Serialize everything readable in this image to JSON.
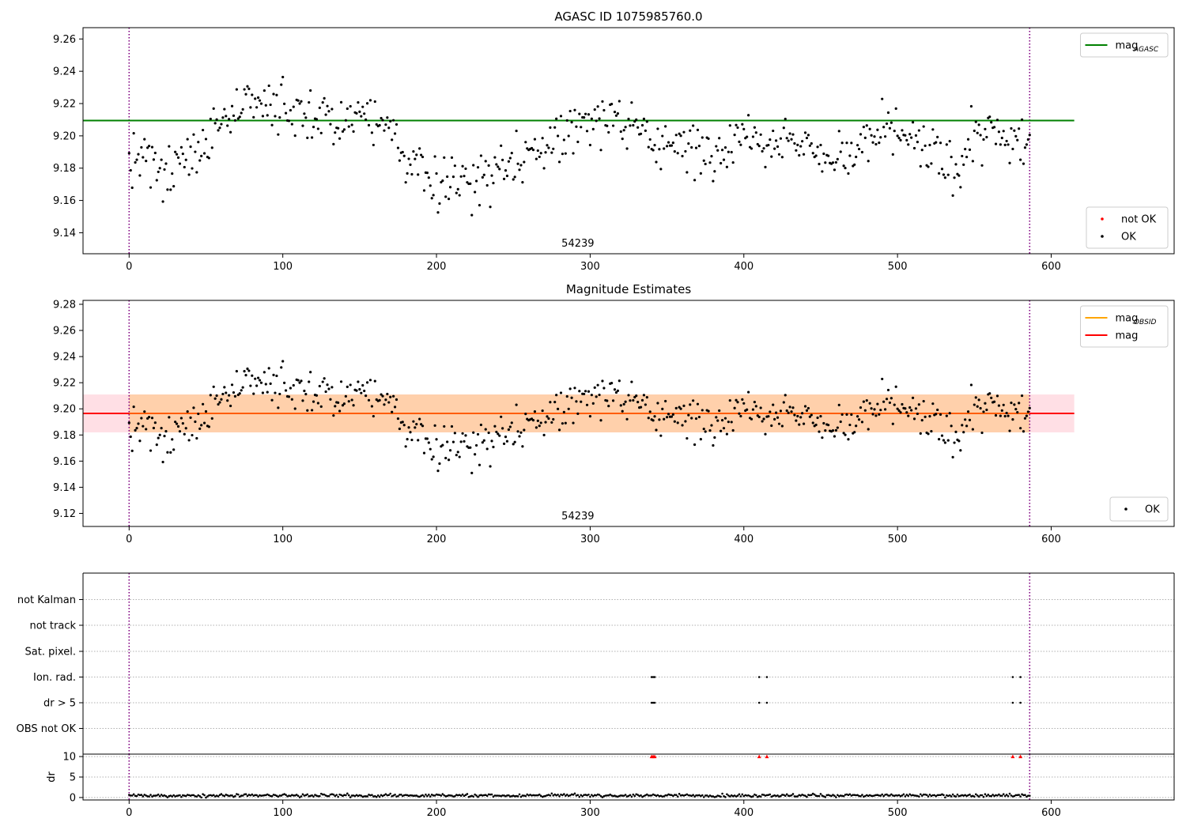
{
  "chart_data": [
    {
      "id": "p1",
      "type": "scatter",
      "title": "AGASC ID 1075985760.0",
      "xlim": [
        -30,
        680
      ],
      "ylim": [
        9.127,
        9.267
      ],
      "xticks": [
        0,
        100,
        200,
        300,
        400,
        500,
        600
      ],
      "yticks": [
        9.14,
        9.16,
        9.18,
        9.2,
        9.22,
        9.24,
        9.26
      ],
      "tick_decimals": 2,
      "annotation": {
        "text": "54239",
        "x": 292
      },
      "vlines": [
        0,
        586
      ],
      "vline_color": "#800080",
      "hline": {
        "y": 9.2095,
        "x0": -30,
        "x1": 615,
        "color": "#008000",
        "label": "mag",
        "sub": "AGASC"
      },
      "points": {
        "source": "mag",
        "color": "#000000"
      },
      "legends": [
        {
          "position": "top-right",
          "entries": [
            {
              "kind": "line",
              "color": "#008000",
              "label": "mag",
              "sub": "AGASC"
            }
          ]
        },
        {
          "position": "bottom-right",
          "entries": [
            {
              "kind": "dot",
              "color": "#ff0000",
              "label": "not OK",
              "sub": ""
            },
            {
              "kind": "dot",
              "color": "#000000",
              "label": "OK",
              "sub": ""
            }
          ]
        }
      ]
    },
    {
      "id": "p2",
      "type": "scatter",
      "title": "Magnitude Estimates",
      "xlim": [
        -30,
        680
      ],
      "ylim": [
        9.11,
        9.283
      ],
      "xticks": [
        0,
        100,
        200,
        300,
        400,
        500,
        600
      ],
      "yticks": [
        9.12,
        9.14,
        9.16,
        9.18,
        9.2,
        9.22,
        9.24,
        9.26,
        9.28
      ],
      "tick_decimals": 2,
      "annotation": {
        "text": "54239",
        "x": 292
      },
      "vlines": [
        0,
        586
      ],
      "vline_color": "#800080",
      "bands": [
        {
          "x0": -30,
          "x1": 615,
          "y0": 9.182,
          "y1": 9.211,
          "color": "#ffc0cb",
          "opacity": 0.5
        },
        {
          "x0": 0,
          "x1": 586,
          "y0": 9.182,
          "y1": 9.211,
          "color": "#ffa500",
          "opacity": 0.25
        }
      ],
      "hline": {
        "y": 9.1965,
        "x0": -30,
        "x1": 615,
        "color": "#ff0000",
        "label": "mag",
        "sub": ""
      },
      "orange_line": {
        "y": 9.1965,
        "x0": 0,
        "x1": 586,
        "color": "#ffa500"
      },
      "points": {
        "source": "mag",
        "color": "#000000"
      },
      "legends": [
        {
          "position": "top-right",
          "entries": [
            {
              "kind": "line",
              "color": "#ffa500",
              "label": "mag",
              "sub": "OBSID"
            },
            {
              "kind": "line",
              "color": "#ff0000",
              "label": "mag",
              "sub": ""
            }
          ]
        },
        {
          "position": "bottom-right",
          "entries": [
            {
              "kind": "dot",
              "color": "#000000",
              "label": "OK",
              "sub": ""
            }
          ]
        }
      ]
    },
    {
      "id": "p3",
      "type": "scatter",
      "title": "",
      "xlim": [
        -30,
        680
      ],
      "categories": [
        "not Kalman",
        "not track",
        "Sat. pixel.",
        "Ion. rad.",
        "dr > 5",
        "OBS not OK"
      ],
      "flags": {
        "Ion. rad.": [
          340,
          341,
          342,
          410,
          415,
          575,
          580
        ],
        "dr > 5": [
          340,
          341,
          342,
          410,
          415,
          575,
          580
        ]
      },
      "vlines": [
        0,
        586
      ],
      "vline_color": "#800080"
    },
    {
      "id": "p4",
      "type": "scatter",
      "ylabel": "dr",
      "xlim": [
        -30,
        680
      ],
      "ylim": [
        -0.6,
        10.6
      ],
      "yticks": [
        0,
        5,
        10
      ],
      "xticks": [
        0,
        100,
        200,
        300,
        400,
        500,
        600
      ],
      "tick_decimals": 0,
      "vlines": [
        0,
        586
      ],
      "vline_color": "#800080",
      "points": {
        "source": "dr",
        "color": "#000000"
      },
      "outliers": {
        "x": [
          340,
          341,
          342,
          410,
          415,
          575,
          580
        ],
        "y": 10,
        "color": "#ff0000"
      }
    }
  ],
  "series": {
    "x_start": 0,
    "x_step": 1,
    "mag_anchors": [
      [
        0,
        9.184
      ],
      [
        8,
        9.186
      ],
      [
        15,
        9.178
      ],
      [
        22,
        9.172
      ],
      [
        28,
        9.18
      ],
      [
        35,
        9.186
      ],
      [
        45,
        9.192
      ],
      [
        55,
        9.205
      ],
      [
        65,
        9.208
      ],
      [
        75,
        9.215
      ],
      [
        90,
        9.218
      ],
      [
        110,
        9.214
      ],
      [
        130,
        9.212
      ],
      [
        150,
        9.209
      ],
      [
        165,
        9.206
      ],
      [
        172,
        9.2
      ],
      [
        180,
        9.186
      ],
      [
        195,
        9.175
      ],
      [
        210,
        9.171
      ],
      [
        220,
        9.17
      ],
      [
        230,
        9.174
      ],
      [
        245,
        9.182
      ],
      [
        260,
        9.19
      ],
      [
        280,
        9.198
      ],
      [
        295,
        9.208
      ],
      [
        305,
        9.214
      ],
      [
        318,
        9.21
      ],
      [
        330,
        9.2
      ],
      [
        345,
        9.198
      ],
      [
        360,
        9.193
      ],
      [
        375,
        9.19
      ],
      [
        390,
        9.193
      ],
      [
        405,
        9.202
      ],
      [
        420,
        9.198
      ],
      [
        440,
        9.195
      ],
      [
        460,
        9.186
      ],
      [
        470,
        9.188
      ],
      [
        480,
        9.194
      ],
      [
        490,
        9.201
      ],
      [
        500,
        9.203
      ],
      [
        510,
        9.195
      ],
      [
        520,
        9.19
      ],
      [
        530,
        9.182
      ],
      [
        538,
        9.18
      ],
      [
        548,
        9.198
      ],
      [
        560,
        9.2
      ],
      [
        575,
        9.197
      ],
      [
        586,
        9.196
      ]
    ],
    "mag_noise": 0.008,
    "dr_baseline": 0.5
  }
}
